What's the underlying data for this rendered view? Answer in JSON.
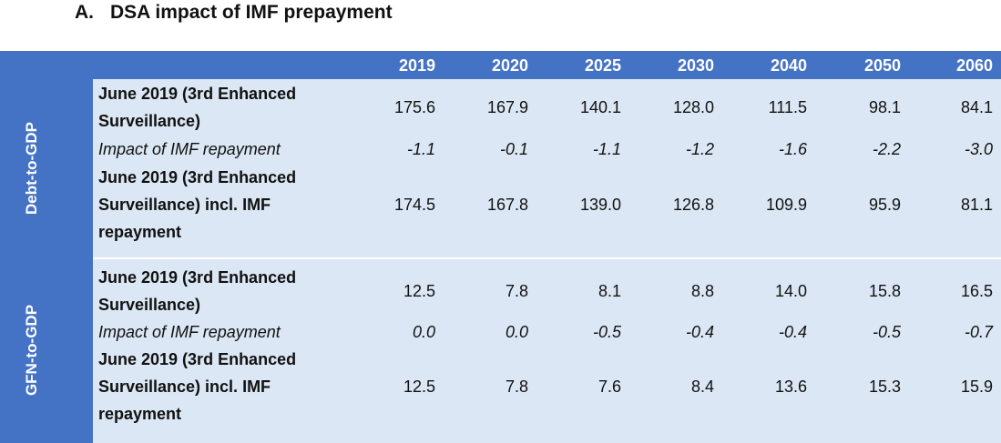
{
  "title": {
    "number": "A.",
    "text": "DSA impact of IMF prepayment"
  },
  "colors": {
    "header_blue": "#4472c4",
    "body_light_blue": "#dbe7f4"
  },
  "years": [
    "2019",
    "2020",
    "2025",
    "2030",
    "2040",
    "2050",
    "2060"
  ],
  "sections": [
    {
      "label": "Debt-to-GDP",
      "rows": [
        {
          "label_lines": [
            "June 2019 (3rd Enhanced",
            "Surveillance)"
          ],
          "style": "bold",
          "values": [
            "175.6",
            "167.9",
            "140.1",
            "128.0",
            "111.5",
            "98.1",
            "84.1"
          ]
        },
        {
          "label_lines": [
            "Impact of IMF repayment"
          ],
          "style": "italic",
          "values": [
            "-1.1",
            "-0.1",
            "-1.1",
            "-1.2",
            "-1.6",
            "-2.2",
            "-3.0"
          ]
        },
        {
          "label_lines": [
            "June 2019 (3rd Enhanced",
            "Surveillance) incl. IMF",
            "repayment"
          ],
          "style": "bold",
          "values": [
            "174.5",
            "167.8",
            "139.0",
            "126.8",
            "109.9",
            "95.9",
            "81.1"
          ]
        }
      ]
    },
    {
      "label": "GFN-to-GDP",
      "rows": [
        {
          "label_lines": [
            "June 2019 (3rd Enhanced",
            "Surveillance)"
          ],
          "style": "bold",
          "values": [
            "12.5",
            "7.8",
            "8.1",
            "8.8",
            "14.0",
            "15.8",
            "16.5"
          ]
        },
        {
          "label_lines": [
            "Impact of IMF repayment"
          ],
          "style": "italic",
          "values": [
            "0.0",
            "0.0",
            "-0.5",
            "-0.4",
            "-0.4",
            "-0.5",
            "-0.7"
          ]
        },
        {
          "label_lines": [
            "June 2019 (3rd Enhanced",
            "Surveillance) incl. IMF",
            "repayment"
          ],
          "style": "bold",
          "values": [
            "12.5",
            "7.8",
            "7.6",
            "8.4",
            "13.6",
            "15.3",
            "15.9"
          ]
        }
      ]
    }
  ]
}
